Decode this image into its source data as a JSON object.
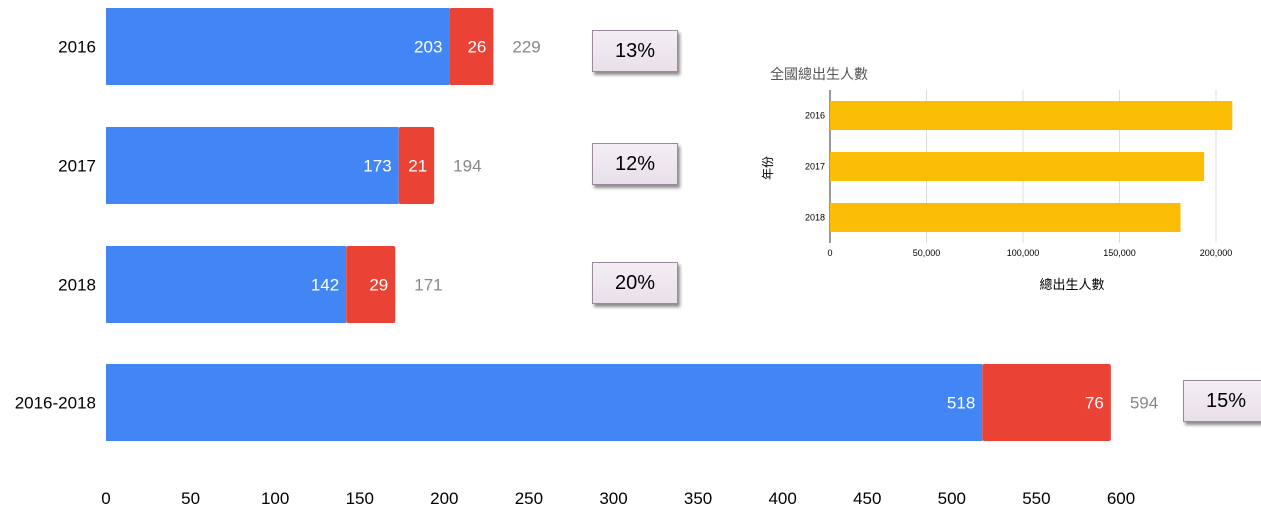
{
  "chart_data": [
    {
      "type": "bar",
      "orientation": "horizontal",
      "stacked": true,
      "categories": [
        "2016",
        "2017",
        "2018",
        "2016-2018"
      ],
      "series": [
        {
          "values": [
            203,
            173,
            142,
            518
          ],
          "color": "#4285f4"
        },
        {
          "values": [
            26,
            21,
            29,
            76
          ],
          "color": "#ea4335"
        }
      ],
      "totals": [
        229,
        194,
        171,
        594
      ],
      "percent_labels": [
        "13%",
        "12%",
        "20%",
        "15%"
      ],
      "x_ticks": [
        "0",
        "50",
        "100",
        "150",
        "200",
        "250",
        "300",
        "350",
        "400",
        "450",
        "500",
        "550",
        "600"
      ],
      "xlim": [
        0,
        600
      ],
      "grid": false,
      "legend": "none",
      "total_label_color": "#888888"
    },
    {
      "type": "bar",
      "orientation": "horizontal",
      "title": "全國總出生人數",
      "categories": [
        "2016",
        "2017",
        "2018"
      ],
      "values": [
        208440,
        193844,
        181601
      ],
      "color": "#fbbc04",
      "xlabel": "總出生人數",
      "ylabel": "年份",
      "x_ticks": [
        "0",
        "50,000",
        "100,000",
        "150,000",
        "200,000"
      ],
      "xlim": [
        0,
        210000
      ],
      "grid": true,
      "legend": "none"
    }
  ]
}
